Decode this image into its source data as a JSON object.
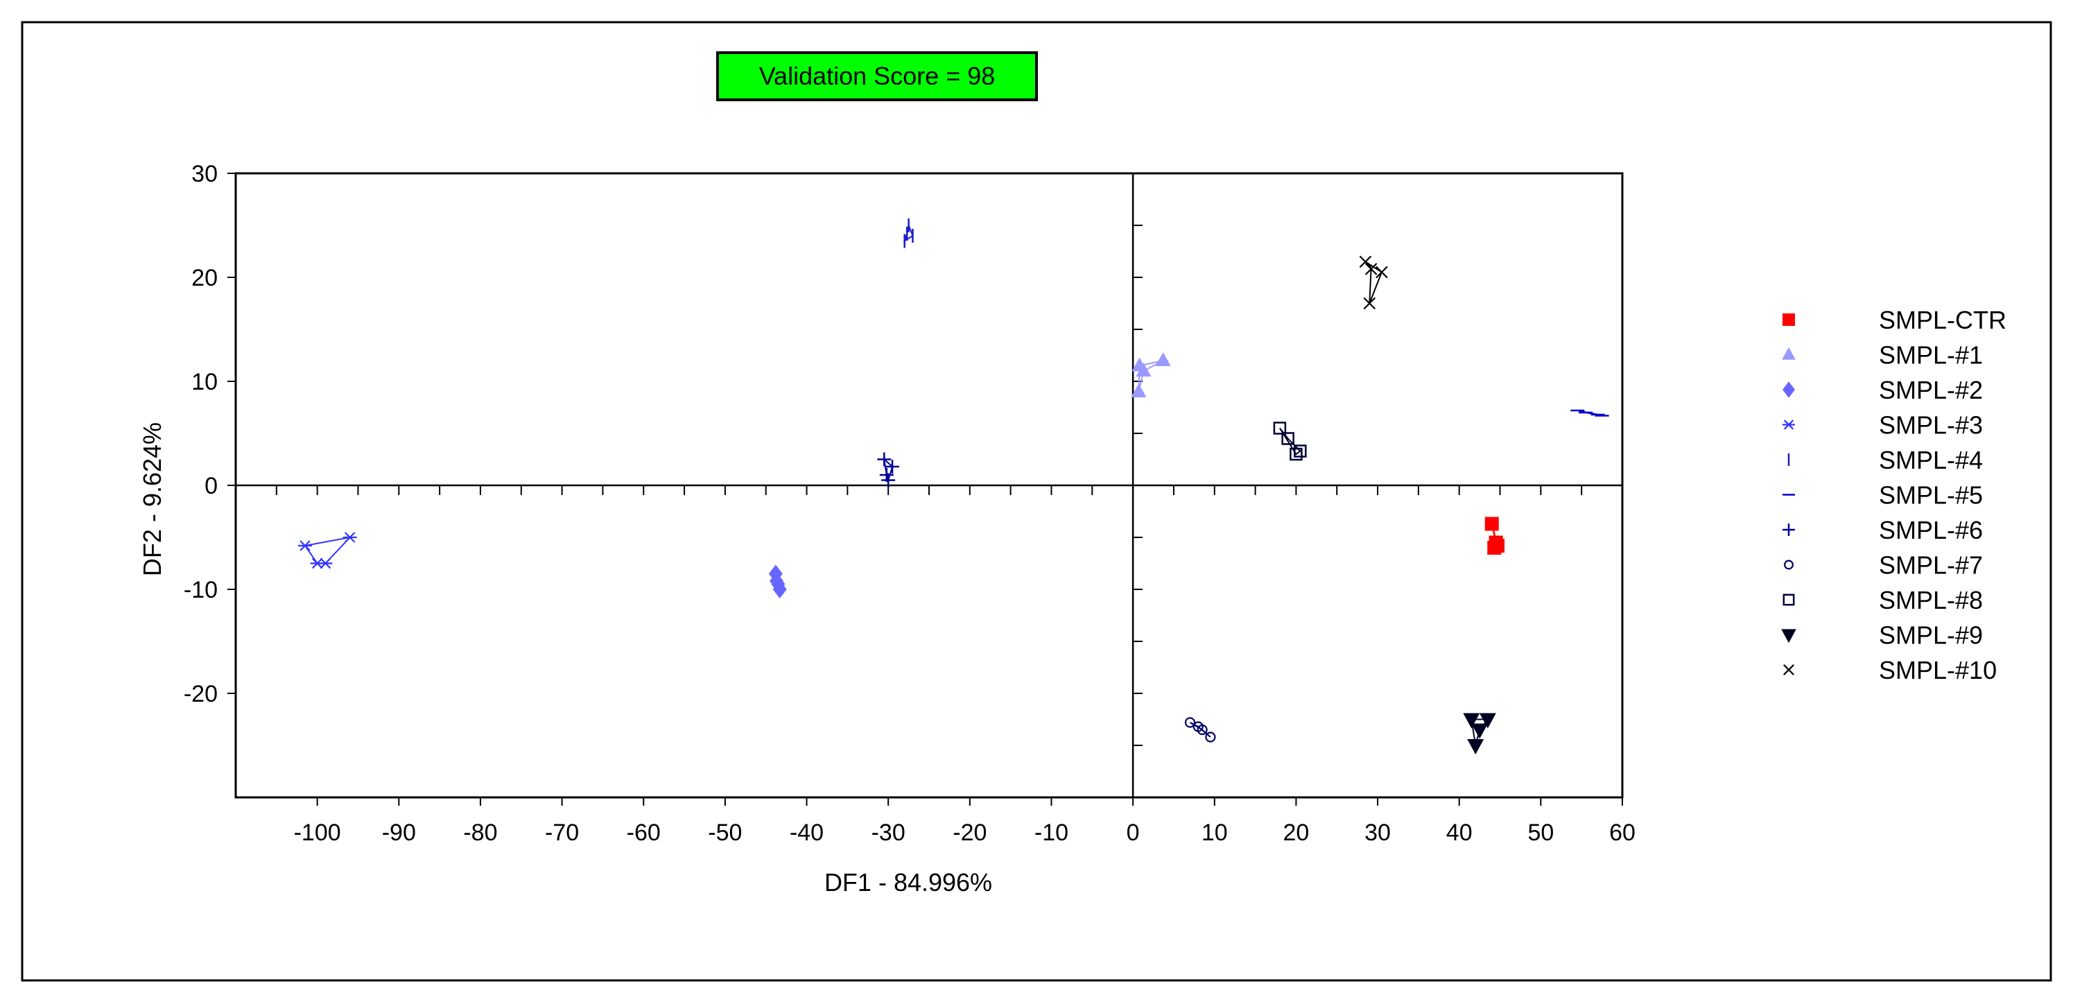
{
  "validation_score_label": "Validation Score = 98",
  "colors": {
    "score_box": "#00ff00",
    "SMPL-CTR": "#ff0000",
    "SMPL-#1": "#9999ff",
    "SMPL-#2": "#6666ff",
    "SMPL-#3": "#3333ff",
    "SMPL-#4": "#1a1acc",
    "SMPL-#5": "#0000cc",
    "SMPL-#6": "#000099",
    "SMPL-#7": "#000066",
    "SMPL-#8": "#000033",
    "SMPL-#9": "#000022",
    "SMPL-#10": "#000000"
  },
  "chart_data": {
    "type": "scatter",
    "title": "",
    "xlabel": "DF1 - 84.996%",
    "ylabel": "DF2 - 9.624%",
    "xlim": [
      -110,
      60
    ],
    "ylim": [
      -30,
      30
    ],
    "x_ticks": [
      -100,
      -90,
      -80,
      -70,
      -60,
      -50,
      -40,
      -30,
      -20,
      -10,
      0,
      10,
      20,
      30,
      40,
      50,
      60
    ],
    "y_ticks": [
      30,
      20,
      10,
      0,
      -10,
      -20
    ],
    "grid": false,
    "legend_position": "right",
    "series": [
      {
        "name": "SMPL-CTR",
        "marker": "square",
        "x": [
          44,
          44.5,
          44.3,
          44.7
        ],
        "y": [
          -3.7,
          -5.5,
          -6,
          -5.8
        ]
      },
      {
        "name": "SMPL-#1",
        "marker": "triangle",
        "x": [
          0.7,
          1.3,
          3.7,
          0.8
        ],
        "y": [
          9,
          11,
          12,
          11.5
        ]
      },
      {
        "name": "SMPL-#2",
        "marker": "diamond",
        "x": [
          -43.8,
          -43.5,
          -43.3,
          -43.7
        ],
        "y": [
          -8.5,
          -9.5,
          -10,
          -9.2
        ]
      },
      {
        "name": "SMPL-#3",
        "marker": "asterisk",
        "x": [
          -101.5,
          -96,
          -99,
          -100
        ],
        "y": [
          -5.8,
          -5,
          -7.5,
          -7.5
        ]
      },
      {
        "name": "SMPL-#4",
        "marker": "vline",
        "x": [
          -27.5,
          -27,
          -28,
          -27.7
        ],
        "y": [
          25,
          24,
          23.5,
          24.2
        ]
      },
      {
        "name": "SMPL-#5",
        "marker": "hline",
        "x": [
          54.5,
          57,
          55.5,
          57.5
        ],
        "y": [
          7.2,
          6.8,
          7,
          6.7
        ]
      },
      {
        "name": "SMPL-#6",
        "marker": "plus",
        "x": [
          -30.5,
          -29.5,
          -30,
          -30.2
        ],
        "y": [
          2.5,
          1.8,
          0.5,
          1
        ]
      },
      {
        "name": "SMPL-#7",
        "marker": "circle",
        "x": [
          7,
          8.5,
          9.5,
          8
        ],
        "y": [
          -22.8,
          -23.5,
          -24.2,
          -23.2
        ]
      },
      {
        "name": "SMPL-#8",
        "marker": "open-square",
        "x": [
          18,
          19,
          20.5,
          20
        ],
        "y": [
          5.5,
          4.5,
          3.3,
          3
        ]
      },
      {
        "name": "SMPL-#9",
        "marker": "down-triangle",
        "x": [
          41.5,
          43.5,
          42.5,
          42
        ],
        "y": [
          -22.5,
          -22.5,
          -23.5,
          -25
        ]
      },
      {
        "name": "SMPL-#10",
        "marker": "x",
        "x": [
          28.5,
          30.5,
          29,
          29.2
        ],
        "y": [
          21.5,
          20.5,
          17.5,
          20.8
        ]
      }
    ]
  }
}
